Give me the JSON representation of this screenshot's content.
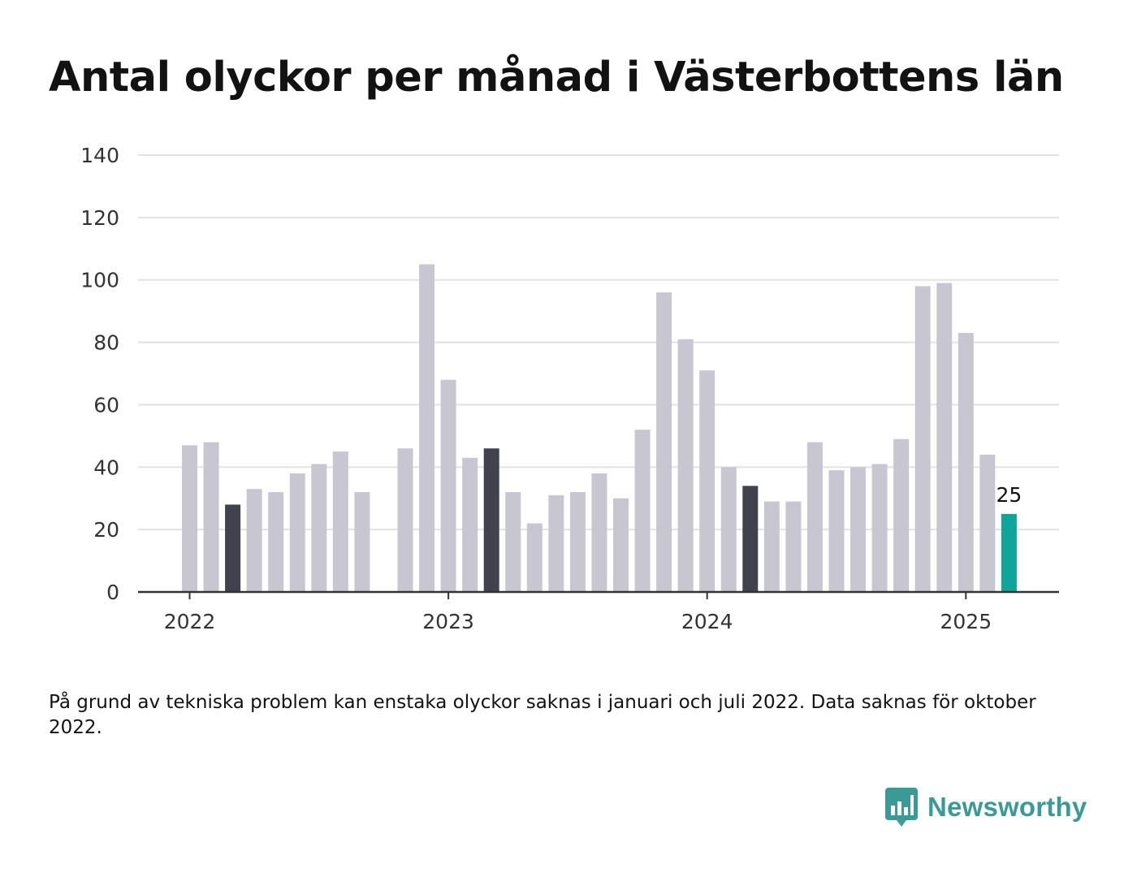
{
  "title": "Antal olyckor per månad i Västerbottens län",
  "note": "På grund av tekniska problem kan enstaka olyckor saknas i januari och juli 2022. Data saknas för oktober 2022.",
  "logo": {
    "text": "Newsworthy",
    "icon": "bar-chart-speech-bubble-icon"
  },
  "colors": {
    "default": "#c8c7d1",
    "highlight": "#42414e",
    "latest": "#10a59a",
    "grid": "#e2e2e2",
    "axis": "#333333",
    "brand": "#3a9b96"
  },
  "chart_data": {
    "type": "bar",
    "title": "Antal olyckor per månad i Västerbottens län",
    "xlabel": "",
    "ylabel": "",
    "ylim": [
      0,
      140
    ],
    "yticks": [
      0,
      20,
      40,
      60,
      80,
      100,
      120,
      140
    ],
    "xtick_labels": [
      "2022",
      "2023",
      "2024",
      "2025"
    ],
    "grid": true,
    "categories": [
      "2022-01",
      "2022-02",
      "2022-03",
      "2022-04",
      "2022-05",
      "2022-06",
      "2022-07",
      "2022-08",
      "2022-09",
      "2022-10",
      "2022-11",
      "2022-12",
      "2023-01",
      "2023-02",
      "2023-03",
      "2023-04",
      "2023-05",
      "2023-06",
      "2023-07",
      "2023-08",
      "2023-09",
      "2023-10",
      "2023-11",
      "2023-12",
      "2024-01",
      "2024-02",
      "2024-03",
      "2024-04",
      "2024-05",
      "2024-06",
      "2024-07",
      "2024-08",
      "2024-09",
      "2024-10",
      "2024-11",
      "2024-12",
      "2025-01",
      "2025-02",
      "2025-03"
    ],
    "values": [
      47,
      48,
      28,
      33,
      32,
      38,
      41,
      45,
      32,
      null,
      46,
      105,
      68,
      43,
      46,
      32,
      22,
      31,
      32,
      38,
      30,
      52,
      96,
      81,
      71,
      40,
      34,
      29,
      29,
      48,
      39,
      40,
      41,
      49,
      98,
      99,
      83,
      44,
      25
    ],
    "highlighted_months": [
      "2022-03",
      "2023-03",
      "2024-03"
    ],
    "latest_label": "25"
  }
}
